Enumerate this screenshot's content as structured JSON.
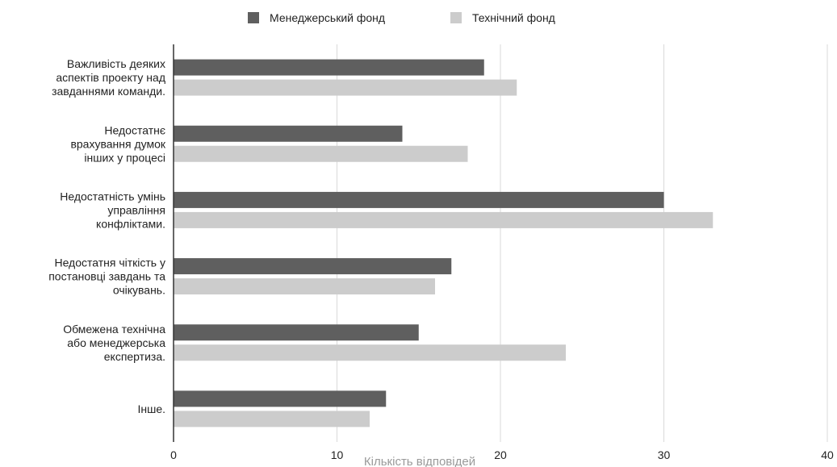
{
  "chart_data": {
    "type": "bar",
    "orientation": "horizontal",
    "categories": [
      [
        "Важливість деяких",
        "аспектів проекту над",
        "завданнями команди."
      ],
      [
        "Недостатнє",
        "врахування думок",
        "інших у процесі"
      ],
      [
        "Недостатність умінь",
        "управління",
        "конфліктами."
      ],
      [
        "Недостатня чіткість у",
        "постановці завдань та",
        "очікувань."
      ],
      [
        "Обмежена технічна",
        "або менеджерська",
        "експертиза."
      ],
      [
        "Інше."
      ]
    ],
    "series": [
      {
        "name": "Менеджерський фонд",
        "color": "#5f5f5f",
        "values": [
          19,
          14,
          30,
          17,
          15,
          13
        ]
      },
      {
        "name": "Технічний фонд",
        "color": "#cccccc",
        "values": [
          21,
          18,
          33,
          16,
          24,
          12
        ]
      }
    ],
    "xlabel": "Кількість відповідей",
    "xlim": [
      0,
      40
    ],
    "xticks": [
      0,
      10,
      20,
      30,
      40
    ],
    "grid": true,
    "legend_position": "top-center"
  }
}
